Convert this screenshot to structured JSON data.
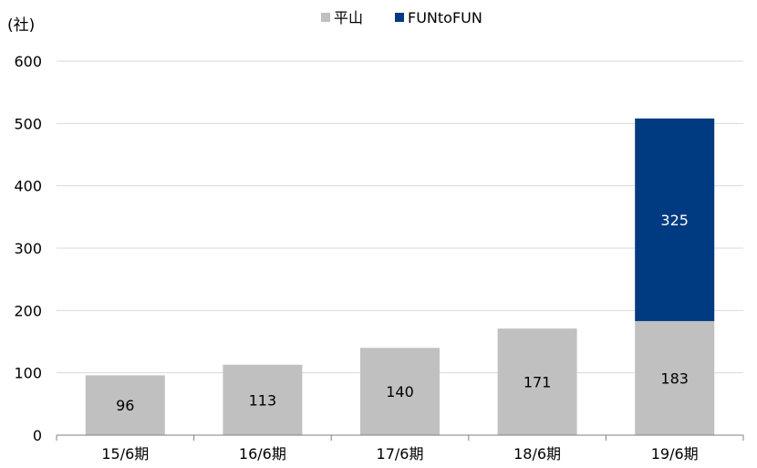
{
  "chart_data": {
    "type": "bar",
    "stacked": true,
    "unit_label": "(社)",
    "categories": [
      "15/6期",
      "16/6期",
      "17/6期",
      "18/6期",
      "19/6期"
    ],
    "series": [
      {
        "name": "平山",
        "color": "#c0c0c0",
        "label_color": "#000000",
        "values": [
          96,
          113,
          140,
          171,
          183
        ]
      },
      {
        "name": "FUNtoFUN",
        "color": "#003a80",
        "label_color": "#ffffff",
        "values": [
          null,
          null,
          null,
          null,
          325
        ]
      }
    ],
    "ylim": [
      0,
      600
    ],
    "yticks": [
      0,
      100,
      200,
      300,
      400,
      500,
      600
    ],
    "grid": true,
    "legend_position": "top-center"
  }
}
